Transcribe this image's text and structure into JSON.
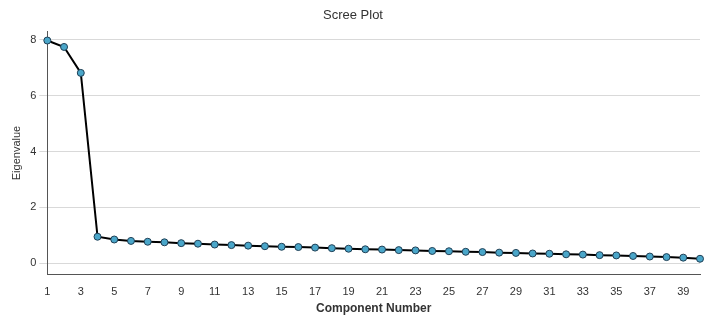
{
  "chart_data": {
    "type": "line",
    "title": "Scree Plot",
    "x_label": "Component Number",
    "y_label": "Eigenvalue",
    "categories": [
      "1",
      null,
      "3",
      null,
      "5",
      null,
      "7",
      null,
      "9",
      null,
      "11",
      null,
      "13",
      null,
      "15",
      null,
      "17",
      null,
      "19",
      null,
      "21",
      null,
      "23",
      null,
      "25",
      null,
      "27",
      null,
      "29",
      null,
      "31",
      null,
      "33",
      null,
      "35",
      null,
      "37",
      null,
      "39",
      null
    ],
    "series": [
      {
        "name": "Eigenvalue",
        "color": "#000000",
        "marker": "circle",
        "line_style": "solid",
        "values": [
          7.98,
          7.75,
          6.82,
          0.95,
          0.85,
          0.8,
          0.77,
          0.75,
          0.72,
          0.7,
          0.67,
          0.65,
          0.63,
          0.61,
          0.59,
          0.58,
          0.56,
          0.54,
          0.52,
          0.5,
          0.49,
          0.47,
          0.46,
          0.44,
          0.43,
          0.41,
          0.4,
          0.38,
          0.37,
          0.35,
          0.34,
          0.32,
          0.31,
          0.29,
          0.28,
          0.26,
          0.24,
          0.22,
          0.2,
          0.16
        ]
      }
    ],
    "ylim": [
      -0.4,
      8.3
    ],
    "yticks": [
      0,
      2,
      4,
      6,
      8
    ],
    "grid": true
  }
}
